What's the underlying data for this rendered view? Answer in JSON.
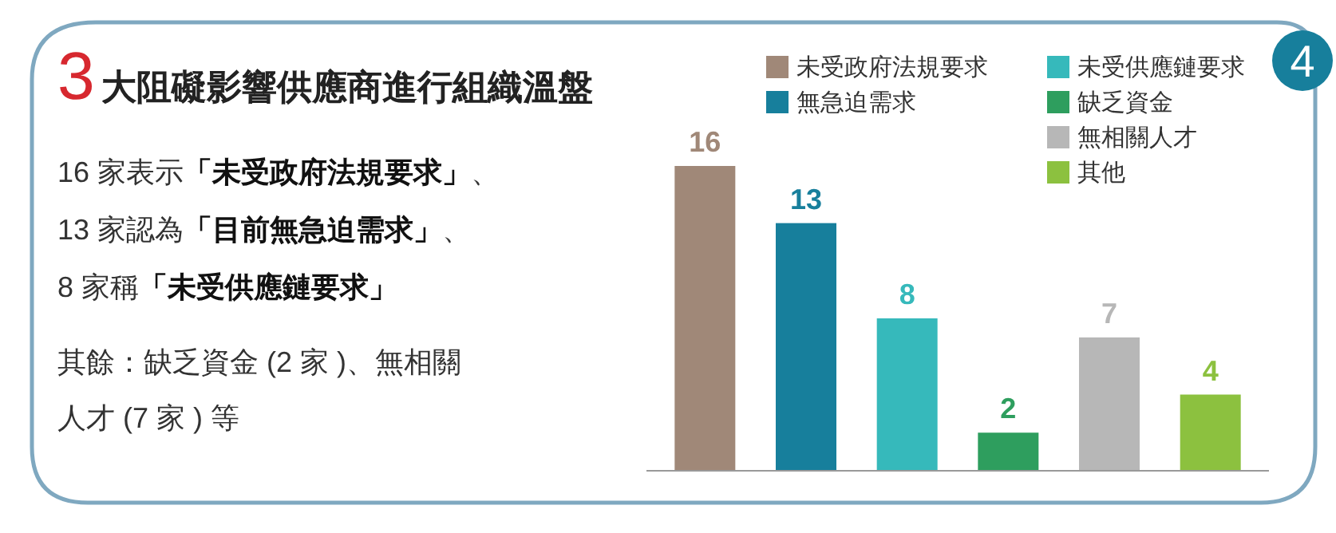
{
  "chart_data": {
    "type": "bar",
    "title": "3大阻礙影響供應商進行組織溫盤",
    "categories": [
      null,
      null,
      null,
      null,
      null,
      null
    ],
    "stacked": true,
    "data_labels": true,
    "legend": "top",
    "series": [
      {
        "name": "未受政府法規要求",
        "color": "#a08878",
        "values": [
          16,
          null,
          null,
          null,
          null,
          null
        ]
      },
      {
        "name": "無急迫需求",
        "color": "#177f9c",
        "values": [
          null,
          13,
          null,
          null,
          null,
          null
        ]
      },
      {
        "name": "未受供應鏈要求",
        "color": "#36b9bb",
        "values": [
          null,
          null,
          8,
          null,
          null,
          null
        ]
      },
      {
        "name": "缺乏資金",
        "color": "#2e9e5e",
        "values": [
          null,
          null,
          null,
          2,
          null,
          null
        ]
      },
      {
        "name": "無相關人才",
        "color": "#b7b7b7",
        "values": [
          null,
          null,
          null,
          null,
          7,
          null
        ]
      },
      {
        "name": "其他",
        "color": "#8cc13f",
        "values": [
          null,
          null,
          null,
          null,
          null,
          4
        ]
      }
    ],
    "annotations": [
      "16 家表示「未受政府法規要求」、",
      "13 家認為「目前無急迫需求」、",
      "8 家稱「未受供應鏈要求」",
      "其餘：缺乏資金 (2 家 )、無相關",
      "人才 (7 家 ) 等",
      "4"
    ]
  }
}
